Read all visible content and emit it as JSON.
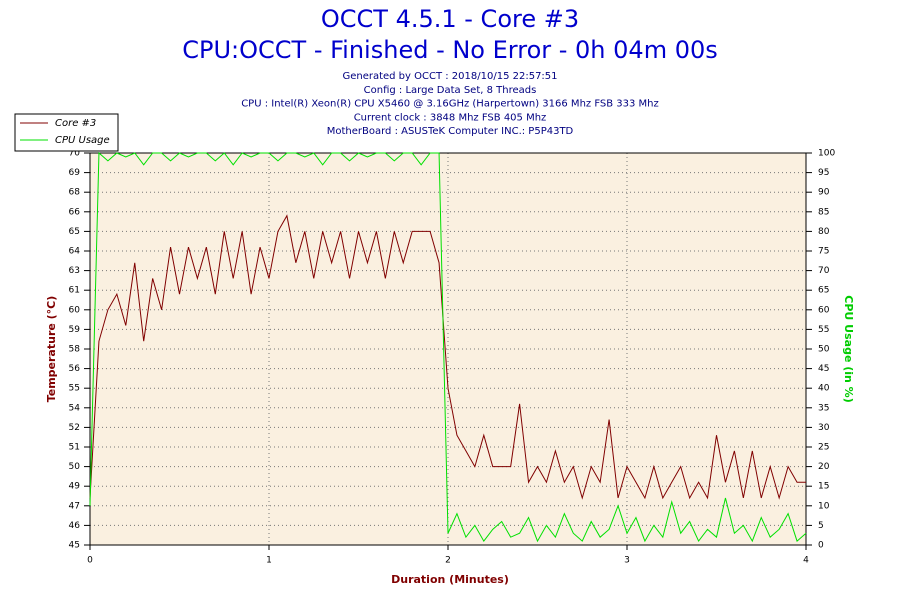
{
  "chart_data": {
    "type": "line",
    "title": "OCCT 4.5.1 - Core #3",
    "subtitle": "CPU:OCCT - Finished - No Error - 0h 04m 00s",
    "info": [
      "Generated by OCCT : 2018/10/15 22:57:51",
      "Config : Large Data Set, 8 Threads",
      "CPU : Intel(R) Xeon(R) CPU X5460 @ 3.16GHz (Harpertown) 3166 Mhz FSB 333 Mhz",
      "Current clock : 3848 Mhz FSB 405 Mhz",
      "MotherBoard : ASUSTeK Computer INC.: P5P43TD"
    ],
    "x_label": "Duration (Minutes)",
    "y_label": "Temperature (°C)",
    "y2_label": "CPU Usage (in %)",
    "x": [
      0,
      0.05,
      0.1,
      0.15,
      0.2,
      0.25,
      0.3,
      0.35,
      0.4,
      0.45,
      0.5,
      0.55,
      0.6,
      0.65,
      0.7,
      0.75,
      0.8,
      0.85,
      0.9,
      0.95,
      1,
      1.05,
      1.1,
      1.15,
      1.2,
      1.25,
      1.3,
      1.35,
      1.4,
      1.45,
      1.5,
      1.55,
      1.6,
      1.65,
      1.7,
      1.75,
      1.8,
      1.85,
      1.9,
      1.95,
      2,
      2.05,
      2.1,
      2.15,
      2.2,
      2.25,
      2.3,
      2.35,
      2.4,
      2.45,
      2.5,
      2.55,
      2.6,
      2.65,
      2.7,
      2.75,
      2.8,
      2.85,
      2.9,
      2.95,
      3,
      3.05,
      3.1,
      3.15,
      3.2,
      3.25,
      3.3,
      3.35,
      3.4,
      3.45,
      3.5,
      3.55,
      3.6,
      3.65,
      3.7,
      3.75,
      3.8,
      3.85,
      3.9,
      3.95,
      4
    ],
    "series": [
      {
        "name": "Core #3",
        "color": "#800000",
        "axis": "y",
        "values": [
          48,
          58,
          60,
          61,
          59,
          63,
          58,
          62,
          60,
          64,
          61,
          64,
          62,
          64,
          61,
          65,
          62,
          65,
          61,
          64,
          62,
          65,
          66,
          63,
          65,
          62,
          65,
          63,
          65,
          62,
          65,
          63,
          65,
          62,
          65,
          63,
          65,
          65,
          65,
          63,
          55,
          52,
          51,
          50,
          52,
          50,
          50,
          50,
          54,
          49,
          50,
          49,
          51,
          49,
          50,
          48,
          50,
          49,
          53,
          48,
          50,
          49,
          48,
          50,
          48,
          49,
          50,
          48,
          49,
          48,
          52,
          49,
          51,
          48,
          51,
          48,
          50,
          48,
          50,
          49,
          49
        ]
      },
      {
        "name": "CPU Usage",
        "color": "#00e000",
        "axis": "y2",
        "values": [
          10,
          100,
          98,
          100,
          99,
          100,
          97,
          100,
          100,
          98,
          100,
          99,
          100,
          100,
          98,
          100,
          97,
          100,
          99,
          100,
          100,
          98,
          100,
          100,
          99,
          100,
          97,
          100,
          100,
          98,
          100,
          99,
          100,
          100,
          98,
          100,
          100,
          97,
          100,
          100,
          3,
          8,
          2,
          5,
          1,
          4,
          6,
          2,
          3,
          7,
          1,
          5,
          2,
          8,
          3,
          1,
          6,
          2,
          4,
          10,
          3,
          7,
          1,
          5,
          2,
          11,
          3,
          6,
          1,
          4,
          2,
          12,
          3,
          5,
          1,
          7,
          2,
          4,
          8,
          1,
          3
        ]
      }
    ],
    "xlim": [
      0,
      4
    ],
    "xticks": [
      0,
      1,
      2,
      3,
      4
    ],
    "ylim": [
      45,
      70
    ],
    "yticks": [
      45,
      {
        "value": 46.25,
        "label": "46"
      },
      {
        "value": 47.5,
        "label": "47"
      },
      {
        "value": 48.75,
        "label": "49"
      },
      50,
      {
        "value": 51.25,
        "label": "51"
      },
      {
        "value": 52.5,
        "label": "52"
      },
      {
        "value": 53.75,
        "label": "54"
      },
      55,
      {
        "value": 56.25,
        "label": "56"
      },
      {
        "value": 57.5,
        "label": "58"
      },
      {
        "value": 58.75,
        "label": "59"
      },
      60,
      {
        "value": 61.25,
        "label": "61"
      },
      {
        "value": 62.5,
        "label": "63"
      },
      {
        "value": 63.75,
        "label": "64"
      },
      65,
      {
        "value": 66.25,
        "label": "66"
      },
      {
        "value": 67.5,
        "label": "68"
      },
      {
        "value": 68.75,
        "label": "69"
      },
      70
    ],
    "y2lim": [
      0,
      100
    ],
    "y2ticks": [
      0,
      5,
      10,
      15,
      20,
      25,
      30,
      35,
      40,
      45,
      50,
      55,
      60,
      65,
      70,
      75,
      80,
      85,
      90,
      95,
      100
    ],
    "grid": true,
    "legend": "top-left"
  }
}
